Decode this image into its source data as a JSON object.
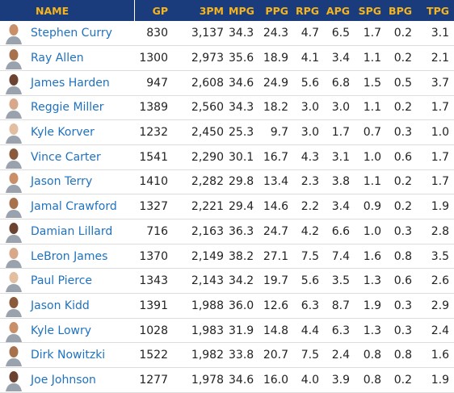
{
  "table": {
    "headers": [
      "NAME",
      "GP",
      "3PM",
      "MPG",
      "PPG",
      "RPG",
      "APG",
      "SPG",
      "BPG",
      "TPG"
    ],
    "rows": [
      [
        "Stephen Curry",
        "830",
        "3,137",
        "34.3",
        "24.3",
        "4.7",
        "6.5",
        "1.7",
        "0.2",
        "3.1"
      ],
      [
        "Ray Allen",
        "1300",
        "2,973",
        "35.6",
        "18.9",
        "4.1",
        "3.4",
        "1.1",
        "0.2",
        "2.1"
      ],
      [
        "James Harden",
        "947",
        "2,608",
        "34.6",
        "24.9",
        "5.6",
        "6.8",
        "1.5",
        "0.5",
        "3.7"
      ],
      [
        "Reggie Miller",
        "1389",
        "2,560",
        "34.3",
        "18.2",
        "3.0",
        "3.0",
        "1.1",
        "0.2",
        "1.7"
      ],
      [
        "Kyle Korver",
        "1232",
        "2,450",
        "25.3",
        "9.7",
        "3.0",
        "1.7",
        "0.7",
        "0.3",
        "1.0"
      ],
      [
        "Vince Carter",
        "1541",
        "2,290",
        "30.1",
        "16.7",
        "4.3",
        "3.1",
        "1.0",
        "0.6",
        "1.7"
      ],
      [
        "Jason Terry",
        "1410",
        "2,282",
        "29.8",
        "13.4",
        "2.3",
        "3.8",
        "1.1",
        "0.2",
        "1.7"
      ],
      [
        "Jamal Crawford",
        "1327",
        "2,221",
        "29.4",
        "14.6",
        "2.2",
        "3.4",
        "0.9",
        "0.2",
        "1.9"
      ],
      [
        "Damian Lillard",
        "716",
        "2,163",
        "36.3",
        "24.7",
        "4.2",
        "6.6",
        "1.0",
        "0.3",
        "2.8"
      ],
      [
        "LeBron James",
        "1370",
        "2,149",
        "38.2",
        "27.1",
        "7.5",
        "7.4",
        "1.6",
        "0.8",
        "3.5"
      ],
      [
        "Paul Pierce",
        "1343",
        "2,143",
        "34.2",
        "19.7",
        "5.6",
        "3.5",
        "1.3",
        "0.6",
        "2.6"
      ],
      [
        "Jason Kidd",
        "1391",
        "1,988",
        "36.0",
        "12.6",
        "6.3",
        "8.7",
        "1.9",
        "0.3",
        "2.9"
      ],
      [
        "Kyle Lowry",
        "1028",
        "1,983",
        "31.9",
        "14.8",
        "4.4",
        "6.3",
        "1.3",
        "0.3",
        "2.4"
      ],
      [
        "Dirk Nowitzki",
        "1522",
        "1,982",
        "33.8",
        "20.7",
        "7.5",
        "2.4",
        "0.8",
        "0.8",
        "1.6"
      ],
      [
        "Joe Johnson",
        "1277",
        "1,978",
        "34.6",
        "16.0",
        "4.0",
        "3.9",
        "0.8",
        "0.2",
        "1.9"
      ]
    ]
  }
}
